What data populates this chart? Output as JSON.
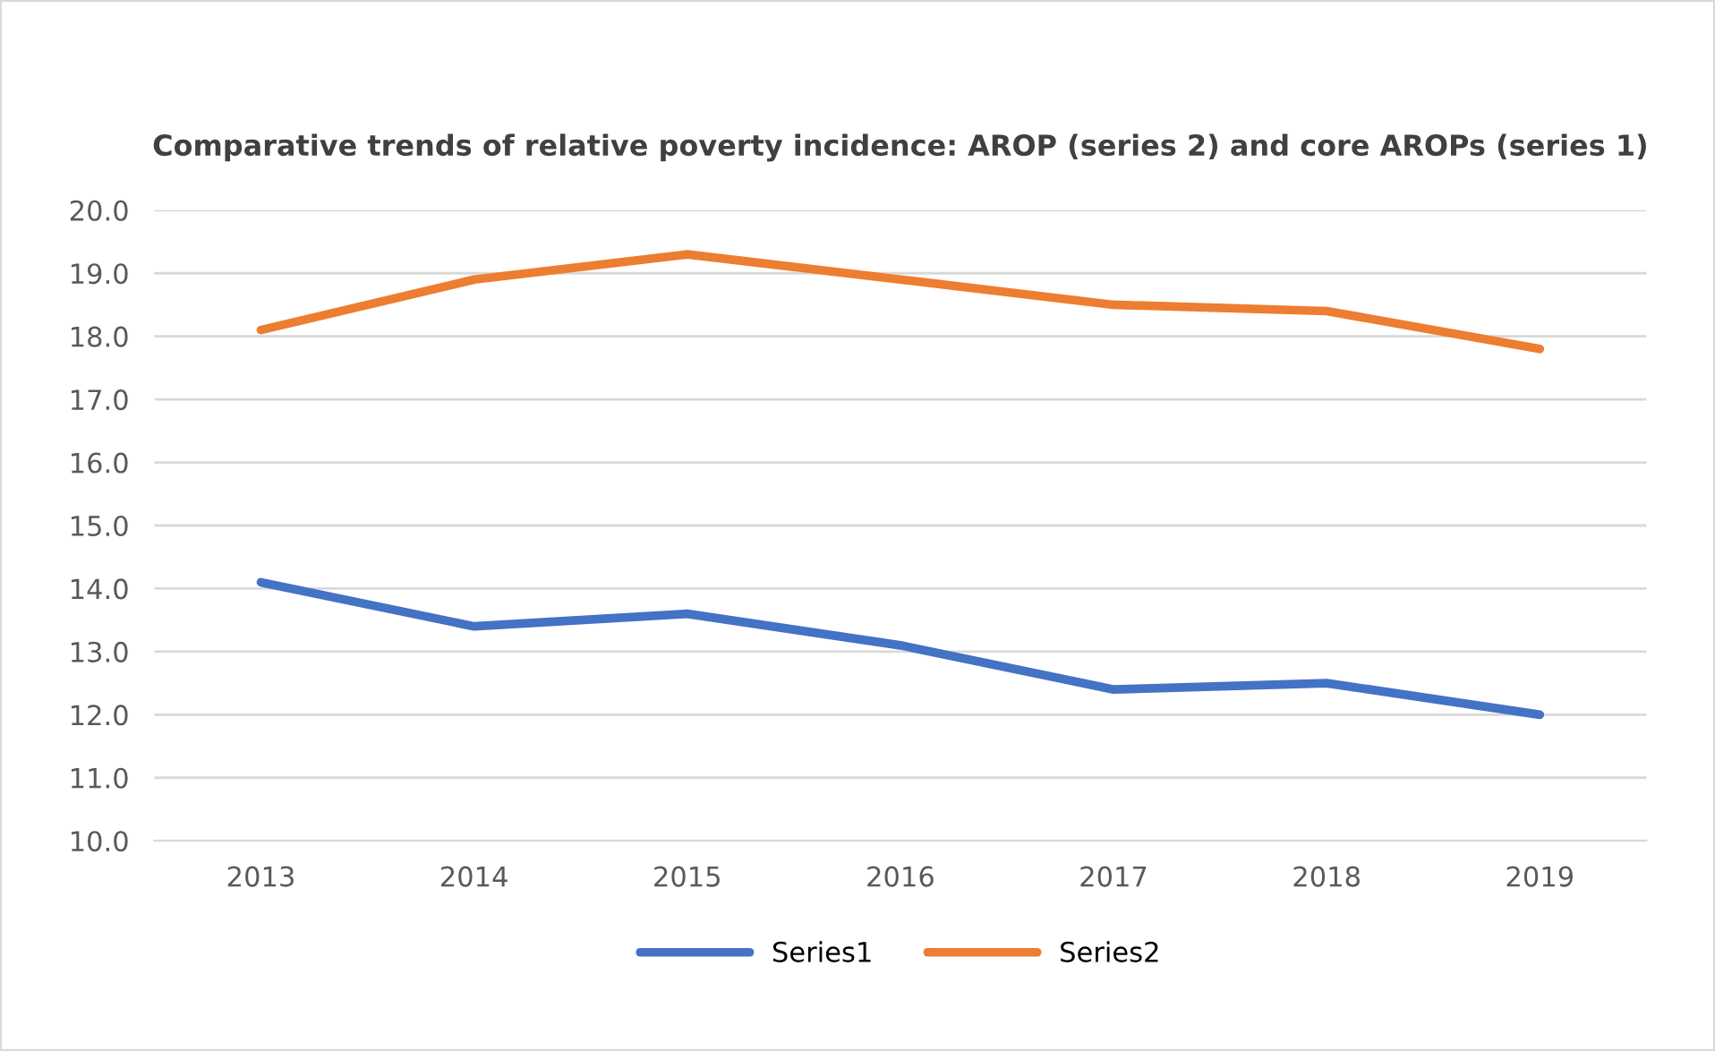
{
  "chart_data": {
    "type": "line",
    "title": "Comparative trends of relative poverty incidence: AROP (series 2) and core AROPs (series 1)",
    "categories": [
      "2013",
      "2014",
      "2015",
      "2016",
      "2017",
      "2018",
      "2019"
    ],
    "series": [
      {
        "name": "Series1",
        "color": "#4472c4",
        "values": [
          14.1,
          13.4,
          13.6,
          13.1,
          12.4,
          12.5,
          12.0
        ]
      },
      {
        "name": "Series2",
        "color": "#ed7d31",
        "values": [
          18.1,
          18.9,
          19.3,
          18.9,
          18.5,
          18.4,
          17.8
        ]
      }
    ],
    "ylim": [
      10,
      20
    ],
    "yticks": [
      {
        "value": 10,
        "label": "10.0"
      },
      {
        "value": 11,
        "label": "11.0"
      },
      {
        "value": 12,
        "label": "12.0"
      },
      {
        "value": 13,
        "label": "13.0"
      },
      {
        "value": 14,
        "label": "14.0"
      },
      {
        "value": 15,
        "label": "15.0"
      },
      {
        "value": 16,
        "label": "16.0"
      },
      {
        "value": 17,
        "label": "17.0"
      },
      {
        "value": 18,
        "label": "18.0"
      },
      {
        "value": 19,
        "label": "19.0"
      },
      {
        "value": 20,
        "label": "20.0"
      }
    ],
    "grid": "y",
    "legend": "bottom",
    "marker": "none",
    "line_style": "solid"
  }
}
